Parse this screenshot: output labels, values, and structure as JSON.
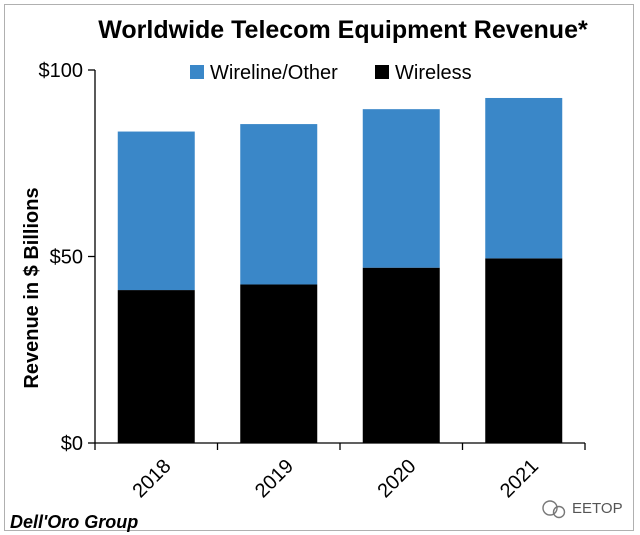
{
  "chart_data": {
    "type": "bar",
    "stacked": true,
    "title": "Worldwide Telecom Equipment Revenue*",
    "xlabel": "",
    "ylabel": "Revenue in $ Billions",
    "categories": [
      "2018",
      "2019",
      "2020",
      "2021"
    ],
    "series": [
      {
        "name": "Wireless",
        "color": "#000000",
        "values": [
          41,
          42.5,
          47,
          49.5
        ]
      },
      {
        "name": "Wireline/Other",
        "color": "#3a87c8",
        "values": [
          42.5,
          43,
          42.5,
          43
        ]
      }
    ],
    "ylim": [
      0,
      100
    ],
    "yticks": [
      0,
      50,
      100
    ],
    "ytick_labels": [
      "$0",
      "$50",
      "$100"
    ],
    "legend": {
      "position": "top",
      "order": [
        "Wireline/Other",
        "Wireless"
      ]
    },
    "grid": false
  },
  "source": "Dell'Oro Group",
  "watermark": {
    "icon": "wechat-icon",
    "label": "EETOP"
  }
}
